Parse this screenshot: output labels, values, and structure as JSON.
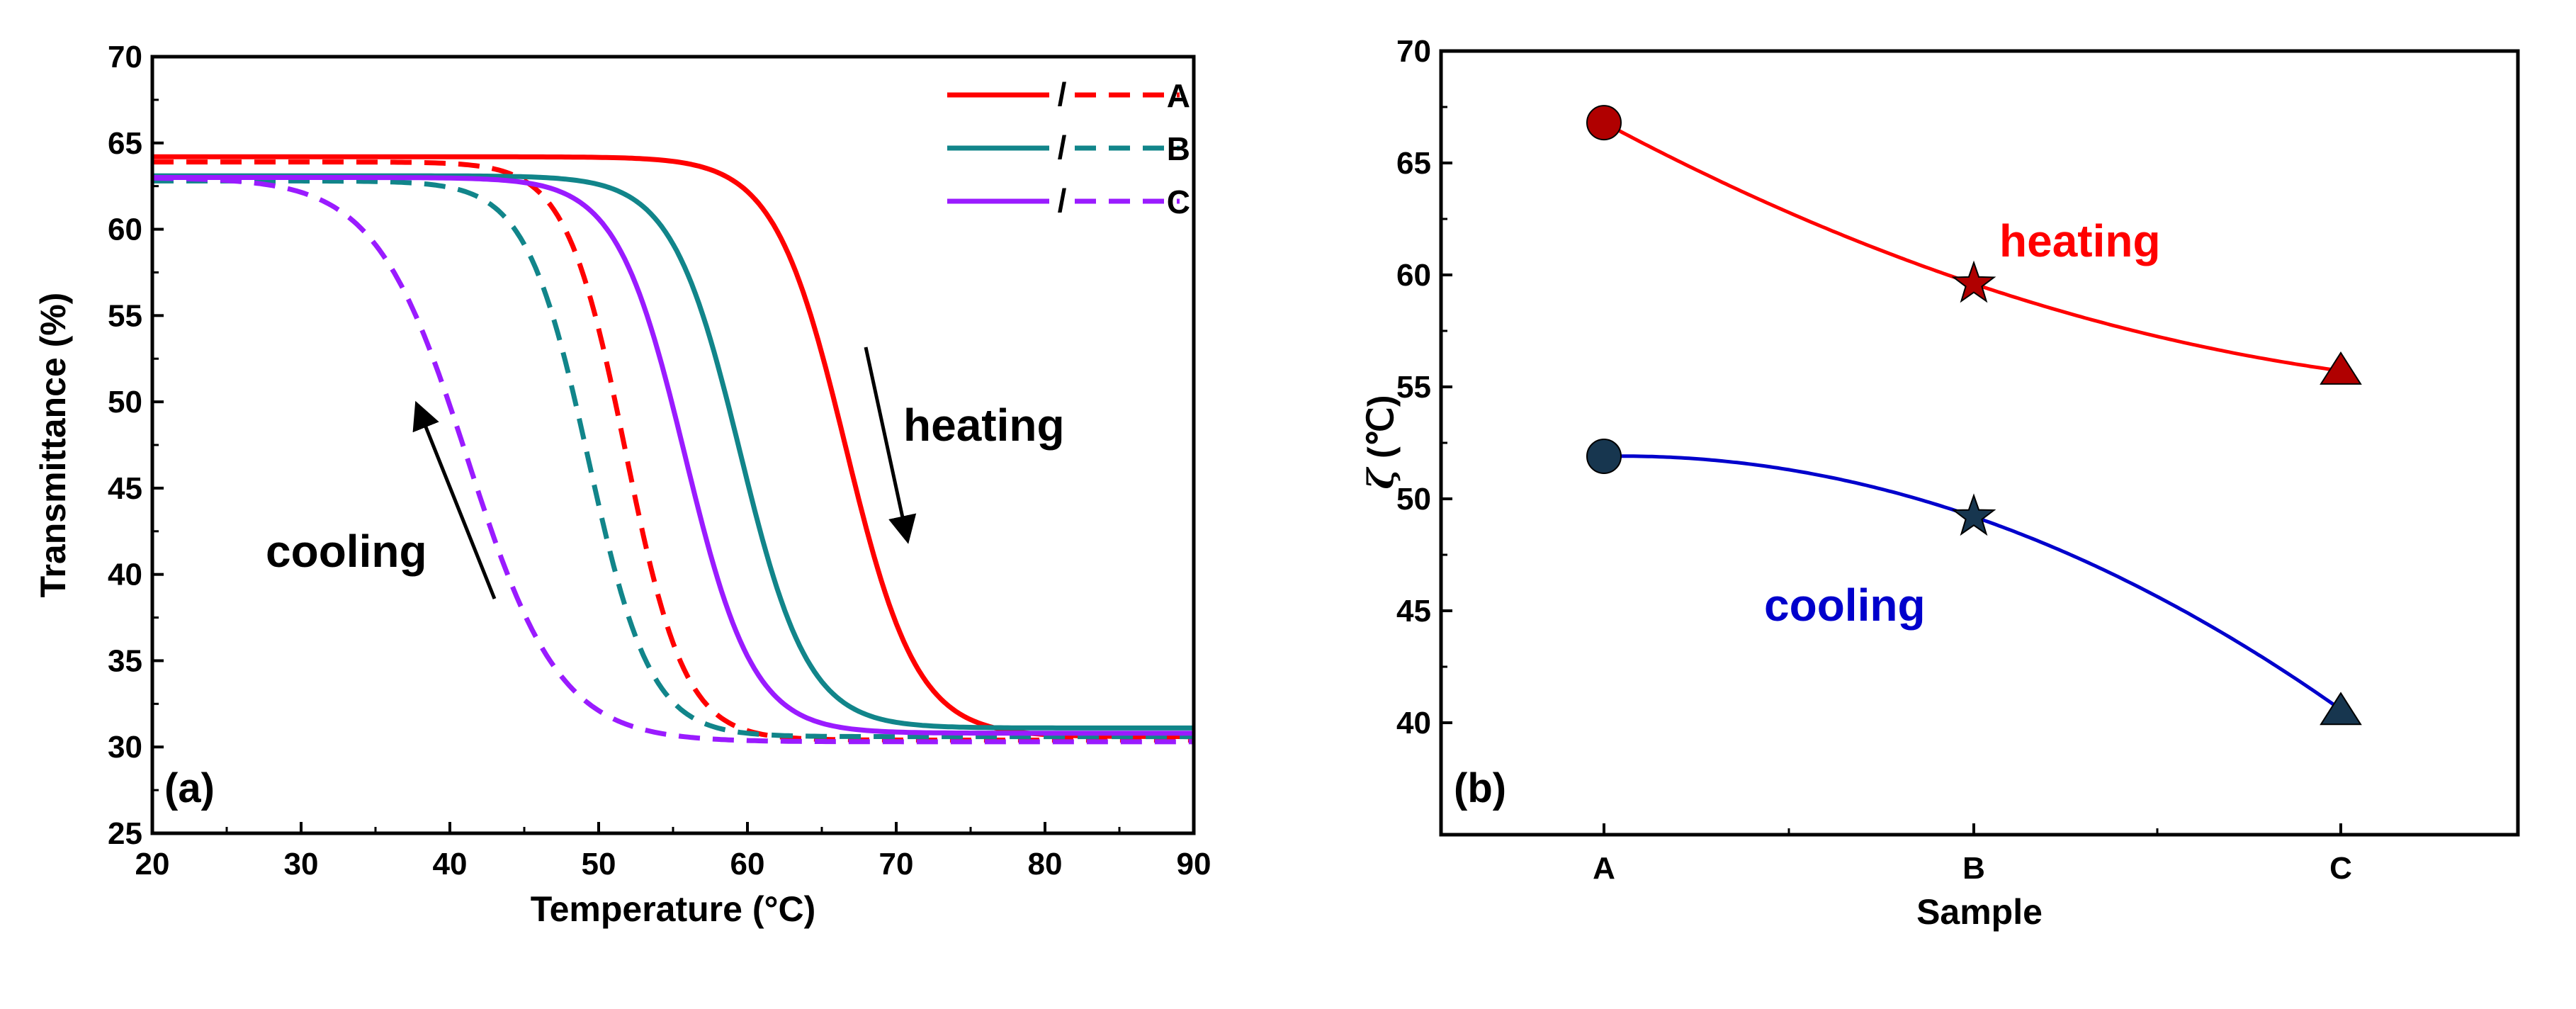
{
  "chart_data": [
    {
      "panel_label": "(a)",
      "type": "line",
      "xlabel": "Temperature (°C)",
      "ylabel": "Transmittance (%)",
      "xlim": [
        20,
        90
      ],
      "ylim": [
        25,
        70
      ],
      "xticks": [
        20,
        30,
        40,
        50,
        60,
        70,
        80,
        90
      ],
      "yticks": [
        25,
        30,
        35,
        40,
        45,
        50,
        55,
        60,
        65,
        70
      ],
      "legend": {
        "position": "top-right",
        "separator": "/",
        "entries": [
          "A",
          "B",
          "C"
        ]
      },
      "series": [
        {
          "name": "A",
          "mode": "heating",
          "style": "solid",
          "color": "#ff0000",
          "t_mid": 66.6,
          "width": 2.4,
          "low": 30.6,
          "high": 64.2
        },
        {
          "name": "A",
          "mode": "cooling",
          "style": "dashed",
          "color": "#ff0000",
          "t_mid": 51.8,
          "width": 2.0,
          "low": 30.4,
          "high": 63.9
        },
        {
          "name": "B",
          "mode": "heating",
          "style": "solid",
          "color": "#11858a",
          "t_mid": 59.5,
          "width": 2.3,
          "low": 31.1,
          "high": 63.1
        },
        {
          "name": "B",
          "mode": "cooling",
          "style": "dashed",
          "color": "#11858a",
          "t_mid": 49.3,
          "width": 2.1,
          "low": 30.6,
          "high": 62.8
        },
        {
          "name": "C",
          "mode": "heating",
          "style": "solid",
          "color": "#9a1bff",
          "t_mid": 55.8,
          "width": 2.3,
          "low": 30.8,
          "high": 63.0
        },
        {
          "name": "C",
          "mode": "cooling",
          "style": "dashed",
          "color": "#9a1bff",
          "t_mid": 41.2,
          "width": 3.1,
          "low": 30.3,
          "high": 63.0
        }
      ],
      "annotations": [
        {
          "text": "heating",
          "arrow": "down"
        },
        {
          "text": "cooling",
          "arrow": "up"
        }
      ]
    },
    {
      "panel_label": "(b)",
      "type": "line",
      "xlabel": "Sample",
      "ylabel_symbol": "ζ",
      "ylabel_unit": " (℃)",
      "categories": [
        "A",
        "B",
        "C"
      ],
      "ylim": [
        35,
        70
      ],
      "yticks": [
        40,
        45,
        50,
        55,
        60,
        65,
        70
      ],
      "series": [
        {
          "name": "heating",
          "color": "#ff0000",
          "values": [
            66.8,
            59.6,
            55.7
          ],
          "markers": [
            "circle",
            "star",
            "triangle"
          ],
          "marker_color": "#b00000"
        },
        {
          "name": "cooling",
          "color": "#0000cc",
          "values": [
            51.9,
            49.2,
            40.5
          ],
          "markers": [
            "circle",
            "star",
            "triangle"
          ],
          "marker_color": "#17364f"
        }
      ],
      "annotations": [
        {
          "text": "heating",
          "color": "#ff0000"
        },
        {
          "text": "cooling",
          "color": "#0000cc"
        }
      ]
    }
  ]
}
